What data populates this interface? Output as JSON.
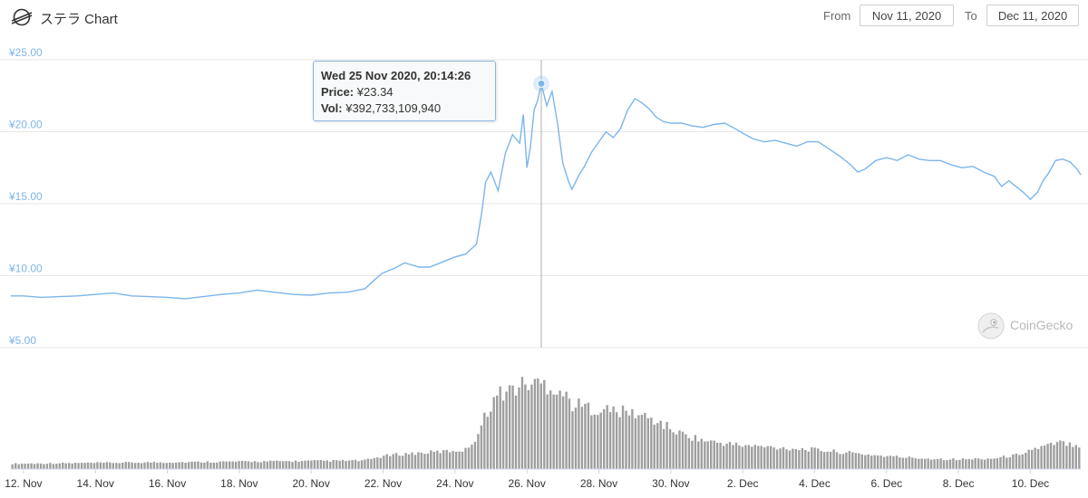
{
  "header": {
    "title": "ステラ Chart",
    "from_label": "From",
    "from_value": "Nov 11, 2020",
    "to_label": "To",
    "to_value": "Dec 11, 2020"
  },
  "tooltip": {
    "date": "Wed 25 Nov 2020, 20:14:26",
    "price_label": "Price:",
    "price_value": "¥23.34",
    "vol_label": "Vol:",
    "vol_value": "¥392,733,109,940"
  },
  "watermark": "CoinGecko",
  "colors": {
    "price_line": "#7cb5ec",
    "volume_bars": "#9e9e9e",
    "axis_labels": "#7cb5ec"
  },
  "icons": {
    "logo": "stellar-logo-icon",
    "watermark": "coingecko-logo-icon"
  },
  "chart_data": {
    "type": "line",
    "ylim": [
      5,
      25
    ],
    "y_ticks": [
      "¥25.00",
      "¥20.00",
      "¥15.00",
      "¥10.00",
      "¥5.00"
    ],
    "y_tick_values": [
      25,
      20,
      15,
      10,
      5
    ],
    "x_ticks": [
      "12. Nov",
      "14. Nov",
      "16. Nov",
      "18. Nov",
      "20. Nov",
      "22. Nov",
      "24. Nov",
      "26. Nov",
      "28. Nov",
      "30. Nov",
      "2. Dec",
      "4. Dec",
      "6. Dec",
      "8. Dec",
      "10. Dec"
    ],
    "x_tick_days": [
      1,
      3,
      5,
      7,
      9,
      11,
      13,
      15,
      17,
      19,
      21,
      23,
      25,
      27,
      29
    ],
    "x_range_days": [
      0.65,
      30.4
    ],
    "series": [
      {
        "type": "line",
        "points": [
          [
            0.65,
            8.6
          ],
          [
            1,
            8.6
          ],
          [
            1.5,
            8.5
          ],
          [
            2,
            8.55
          ],
          [
            2.5,
            8.6
          ],
          [
            3,
            8.7
          ],
          [
            3.5,
            8.8
          ],
          [
            4,
            8.6
          ],
          [
            4.5,
            8.55
          ],
          [
            5,
            8.5
          ],
          [
            5.5,
            8.4
          ],
          [
            6,
            8.55
          ],
          [
            6.5,
            8.7
          ],
          [
            7,
            8.8
          ],
          [
            7.5,
            9.0
          ],
          [
            8,
            8.85
          ],
          [
            8.5,
            8.7
          ],
          [
            9,
            8.65
          ],
          [
            9.5,
            8.8
          ],
          [
            10,
            8.85
          ],
          [
            10.5,
            9.1
          ],
          [
            10.8,
            9.8
          ],
          [
            11,
            10.2
          ],
          [
            11.3,
            10.5
          ],
          [
            11.6,
            10.9
          ],
          [
            12,
            10.6
          ],
          [
            12.3,
            10.6
          ],
          [
            12.6,
            10.9
          ],
          [
            13,
            11.3
          ],
          [
            13.3,
            11.5
          ],
          [
            13.6,
            12.2
          ],
          [
            13.75,
            14.5
          ],
          [
            13.85,
            16.5
          ],
          [
            14.0,
            17.2
          ],
          [
            14.2,
            15.9
          ],
          [
            14.4,
            18.5
          ],
          [
            14.6,
            19.8
          ],
          [
            14.8,
            19.2
          ],
          [
            14.9,
            21.2
          ],
          [
            15.0,
            17.5
          ],
          [
            15.1,
            19.0
          ],
          [
            15.2,
            21.5
          ],
          [
            15.3,
            22.2
          ],
          [
            15.4,
            23.34
          ],
          [
            15.55,
            21.8
          ],
          [
            15.7,
            22.8
          ],
          [
            15.85,
            20.6
          ],
          [
            16.0,
            17.8
          ],
          [
            16.15,
            16.6
          ],
          [
            16.25,
            16.0
          ],
          [
            16.45,
            17.0
          ],
          [
            16.6,
            17.6
          ],
          [
            16.8,
            18.6
          ],
          [
            17.0,
            19.3
          ],
          [
            17.2,
            20.0
          ],
          [
            17.4,
            19.6
          ],
          [
            17.6,
            20.2
          ],
          [
            17.8,
            21.5
          ],
          [
            18.0,
            22.3
          ],
          [
            18.2,
            22.0
          ],
          [
            18.4,
            21.6
          ],
          [
            18.6,
            21.0
          ],
          [
            18.8,
            20.7
          ],
          [
            19.0,
            20.6
          ],
          [
            19.3,
            20.6
          ],
          [
            19.6,
            20.4
          ],
          [
            19.9,
            20.3
          ],
          [
            20.2,
            20.5
          ],
          [
            20.5,
            20.6
          ],
          [
            20.8,
            20.2
          ],
          [
            21.0,
            19.9
          ],
          [
            21.3,
            19.5
          ],
          [
            21.6,
            19.3
          ],
          [
            21.9,
            19.4
          ],
          [
            22.2,
            19.2
          ],
          [
            22.5,
            19.0
          ],
          [
            22.8,
            19.3
          ],
          [
            23.1,
            19.3
          ],
          [
            23.4,
            18.8
          ],
          [
            23.7,
            18.3
          ],
          [
            24.0,
            17.7
          ],
          [
            24.2,
            17.2
          ],
          [
            24.4,
            17.4
          ],
          [
            24.7,
            18.0
          ],
          [
            25.0,
            18.2
          ],
          [
            25.3,
            18.0
          ],
          [
            25.6,
            18.4
          ],
          [
            25.9,
            18.1
          ],
          [
            26.2,
            18.0
          ],
          [
            26.5,
            18.0
          ],
          [
            26.8,
            17.7
          ],
          [
            27.1,
            17.5
          ],
          [
            27.4,
            17.6
          ],
          [
            27.7,
            17.2
          ],
          [
            28.0,
            16.9
          ],
          [
            28.2,
            16.2
          ],
          [
            28.4,
            16.6
          ],
          [
            28.6,
            16.2
          ],
          [
            28.8,
            15.8
          ],
          [
            29.0,
            15.3
          ],
          [
            29.2,
            15.8
          ],
          [
            29.35,
            16.6
          ],
          [
            29.5,
            17.1
          ],
          [
            29.7,
            18.0
          ],
          [
            29.9,
            18.1
          ],
          [
            30.1,
            17.9
          ],
          [
            30.3,
            17.4
          ],
          [
            30.4,
            17.0
          ]
        ]
      },
      {
        "type": "bar",
        "name": "",
        "profile": [
          [
            0.65,
            0.05
          ],
          [
            10.5,
            0.08
          ],
          [
            11.0,
            0.12
          ],
          [
            11.5,
            0.14
          ],
          [
            12.5,
            0.16
          ],
          [
            13.3,
            0.18
          ],
          [
            13.6,
            0.3
          ],
          [
            13.9,
            0.55
          ],
          [
            14.2,
            0.7
          ],
          [
            14.6,
            0.75
          ],
          [
            15.0,
            0.8
          ],
          [
            15.5,
            0.8
          ],
          [
            15.9,
            0.74
          ],
          [
            16.3,
            0.6
          ],
          [
            17.0,
            0.56
          ],
          [
            18.0,
            0.52
          ],
          [
            18.6,
            0.45
          ],
          [
            19.2,
            0.34
          ],
          [
            20.0,
            0.26
          ],
          [
            21.0,
            0.22
          ],
          [
            22.0,
            0.2
          ],
          [
            23.0,
            0.18
          ],
          [
            24.0,
            0.15
          ],
          [
            25.0,
            0.12
          ],
          [
            26.0,
            0.1
          ],
          [
            27.0,
            0.09
          ],
          [
            28.0,
            0.1
          ],
          [
            28.6,
            0.13
          ],
          [
            29.0,
            0.18
          ],
          [
            29.5,
            0.22
          ],
          [
            29.9,
            0.25
          ],
          [
            30.4,
            0.22
          ]
        ]
      }
    ]
  }
}
